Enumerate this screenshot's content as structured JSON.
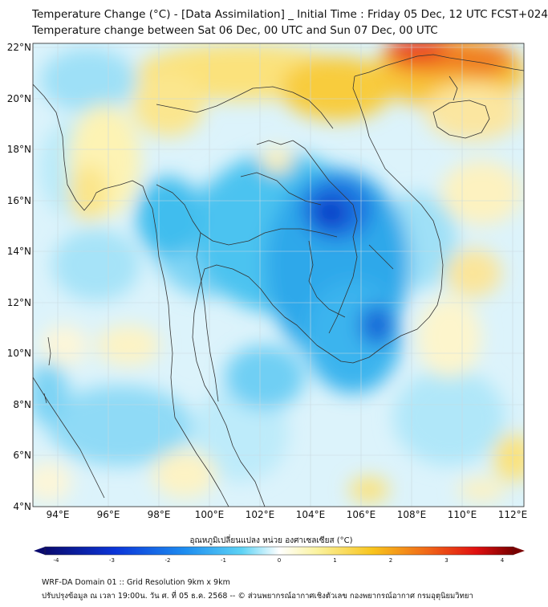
{
  "header": {
    "title_line1": "Temperature Change (°C) - [Data Assimilation] _ Initial Time : Friday 05 Dec, 12 UTC FCST+024",
    "title_line2": "Temperature change between Sat 06 Dec, 00 UTC and Sun 07 Dec, 00 UTC"
  },
  "map": {
    "variable": "Temperature change",
    "units": "°C",
    "lon_range": [
      93,
      112.5
    ],
    "lat_range": [
      4,
      22.2
    ],
    "lat_labels": [
      "22°N",
      "20°N",
      "18°N",
      "16°N",
      "14°N",
      "12°N",
      "10°N",
      "8°N",
      "6°N",
      "4°N"
    ],
    "lon_labels": [
      "94°E",
      "96°E",
      "98°E",
      "100°E",
      "102°E",
      "104°E",
      "106°E",
      "108°E",
      "110°E",
      "112°E"
    ],
    "colors": {
      "background": "#dff4fb",
      "grid": "#c9d9e0",
      "coastline": "#333333"
    }
  },
  "colorbar": {
    "title": "อุณหภูมิเปลี่ยนแปลง หน่วย องศาเซลเซียส (°C)",
    "ticks": [
      "-4",
      "-3",
      "-2",
      "-1",
      "0",
      "1",
      "2",
      "3",
      "4"
    ],
    "min": -4,
    "max": 4
  },
  "footer": {
    "line1": "WRF-DA Domain 01 :: Grid Resolution 9km x 9km",
    "line2": "ปรับปรุงข้อมูล ณ เวลา 19:00น. วัน ศ. ที่ 05 ธ.ค. 2568 -- © ส่วนพยากรณ์อากาศเชิงตัวเลข กองพยากรณ์อากาศ กรมอุตุนิยมวิทยา"
  }
}
